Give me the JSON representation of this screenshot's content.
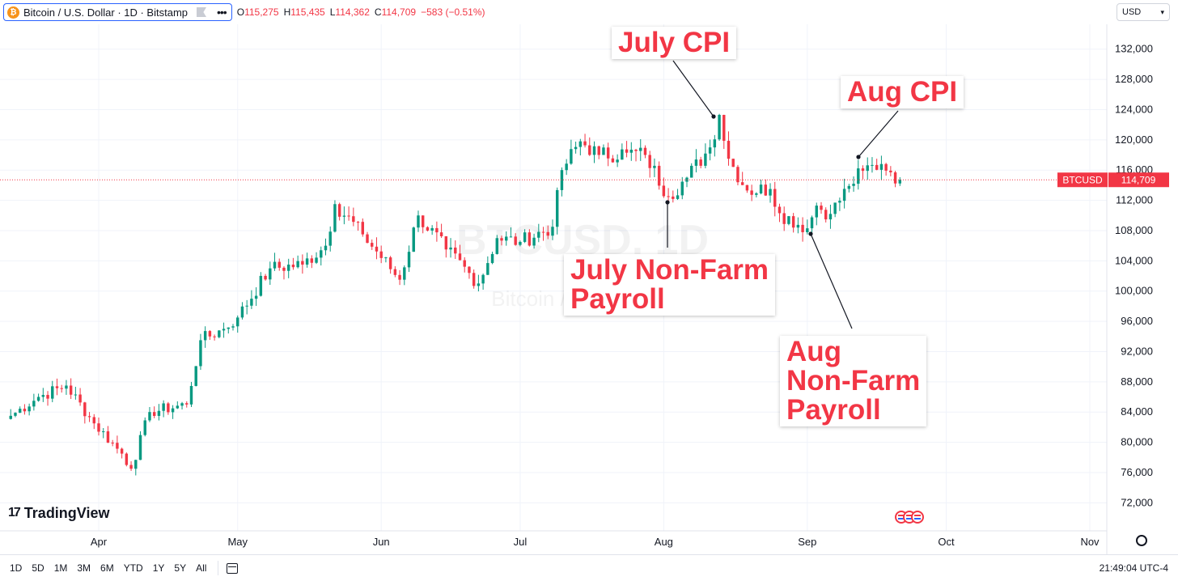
{
  "header": {
    "symbol": "Bitcoin / U.S. Dollar · 1D · Bitstamp",
    "ohlc": [
      {
        "label": "O",
        "value": "115,275"
      },
      {
        "label": "H",
        "value": "115,435"
      },
      {
        "label": "L",
        "value": "114,362"
      },
      {
        "label": "C",
        "value": "114,709"
      }
    ],
    "change": "−583 (−0.51%)",
    "currency": "USD"
  },
  "watermark": {
    "line1": "BTCUSD, 1D",
    "line2": "Bitcoin / U.S. Dollar"
  },
  "price_label": {
    "ticker": "BTCUSD",
    "value": "114,709"
  },
  "annotations": [
    {
      "text": "July CPI"
    },
    {
      "text": "Aug CPI"
    },
    {
      "text": "July Non-Farm\nPayroll"
    },
    {
      "text": "Aug\nNon-Farm\nPayroll"
    }
  ],
  "brand": {
    "name": "TradingView"
  },
  "timeframes": [
    "1D",
    "5D",
    "1M",
    "3M",
    "6M",
    "YTD",
    "1Y",
    "5Y",
    "All"
  ],
  "footer": {
    "clock": "21:49:04 UTC-4"
  },
  "colors": {
    "up": "#089981",
    "down": "#f23645",
    "accent": "#2962ff",
    "grid": "#f0f3fa"
  },
  "chart_data": {
    "type": "candlestick",
    "symbol": "BTCUSD",
    "timeframe": "1D",
    "exchange": "Bitstamp",
    "last_price": 114709,
    "ylim": [
      70000,
      134000
    ],
    "y_ticks": [
      72000,
      76000,
      80000,
      84000,
      88000,
      92000,
      96000,
      100000,
      104000,
      108000,
      112000,
      116000,
      120000,
      124000,
      128000,
      132000
    ],
    "y_tick_labels": [
      "72,000",
      "76,000",
      "80,000",
      "84,000",
      "88,000",
      "92,000",
      "96,000",
      "100,000",
      "104,000",
      "108,000",
      "112,000",
      "116,000",
      "120,000",
      "124,000",
      "128,000",
      "132,000"
    ],
    "xlim": [
      "2025-03-13",
      "2025-11-23"
    ],
    "x_ticks": [
      "2025-04-01",
      "2025-05-01",
      "2025-06-01",
      "2025-07-01",
      "2025-08-01",
      "2025-09-01",
      "2025-10-01",
      "2025-11-01"
    ],
    "x_tick_labels": [
      "Apr",
      "May",
      "Jun",
      "Jul",
      "Aug",
      "Sep",
      "Oct",
      "Nov"
    ],
    "grid": true,
    "keypoints": [
      {
        "date": "2025-03-13",
        "close": 83500
      },
      {
        "date": "2025-03-19",
        "close": 86000
      },
      {
        "date": "2025-03-25",
        "close": 87500
      },
      {
        "date": "2025-03-31",
        "close": 82500
      },
      {
        "date": "2025-04-06",
        "close": 78500
      },
      {
        "date": "2025-04-08",
        "close": 76500
      },
      {
        "date": "2025-04-12",
        "close": 84000
      },
      {
        "date": "2025-04-20",
        "close": 85000
      },
      {
        "date": "2025-04-23",
        "close": 93500
      },
      {
        "date": "2025-04-28",
        "close": 95000
      },
      {
        "date": "2025-05-01",
        "close": 96500
      },
      {
        "date": "2025-05-08",
        "close": 103000
      },
      {
        "date": "2025-05-15",
        "close": 103500
      },
      {
        "date": "2025-05-20",
        "close": 106000
      },
      {
        "date": "2025-05-22",
        "close": 111500
      },
      {
        "date": "2025-05-28",
        "close": 107500
      },
      {
        "date": "2025-06-05",
        "close": 101500
      },
      {
        "date": "2025-06-09",
        "close": 110000
      },
      {
        "date": "2025-06-15",
        "close": 105500
      },
      {
        "date": "2025-06-22",
        "close": 101000
      },
      {
        "date": "2025-06-26",
        "close": 107000
      },
      {
        "date": "2025-07-01",
        "close": 106500
      },
      {
        "date": "2025-07-08",
        "close": 108500
      },
      {
        "date": "2025-07-10",
        "close": 116000
      },
      {
        "date": "2025-07-14",
        "close": 119800
      },
      {
        "date": "2025-07-18",
        "close": 118000
      },
      {
        "date": "2025-07-24",
        "close": 118300
      },
      {
        "date": "2025-07-28",
        "close": 118000
      },
      {
        "date": "2025-08-02",
        "close": 112500
      },
      {
        "date": "2025-08-06",
        "close": 115000
      },
      {
        "date": "2025-08-11",
        "close": 119000
      },
      {
        "date": "2025-08-13",
        "close": 123300
      },
      {
        "date": "2025-08-15",
        "close": 117500
      },
      {
        "date": "2025-08-19",
        "close": 113300
      },
      {
        "date": "2025-08-24",
        "close": 113500
      },
      {
        "date": "2025-08-26",
        "close": 110300
      },
      {
        "date": "2025-09-01",
        "close": 108300
      },
      {
        "date": "2025-09-03",
        "close": 111300
      },
      {
        "date": "2025-09-06",
        "close": 110200
      },
      {
        "date": "2025-09-10",
        "close": 113900
      },
      {
        "date": "2025-09-13",
        "close": 115900
      },
      {
        "date": "2025-09-17",
        "close": 116800
      },
      {
        "date": "2025-09-19",
        "close": 115700
      },
      {
        "date": "2025-09-21",
        "close": 114709
      }
    ]
  }
}
